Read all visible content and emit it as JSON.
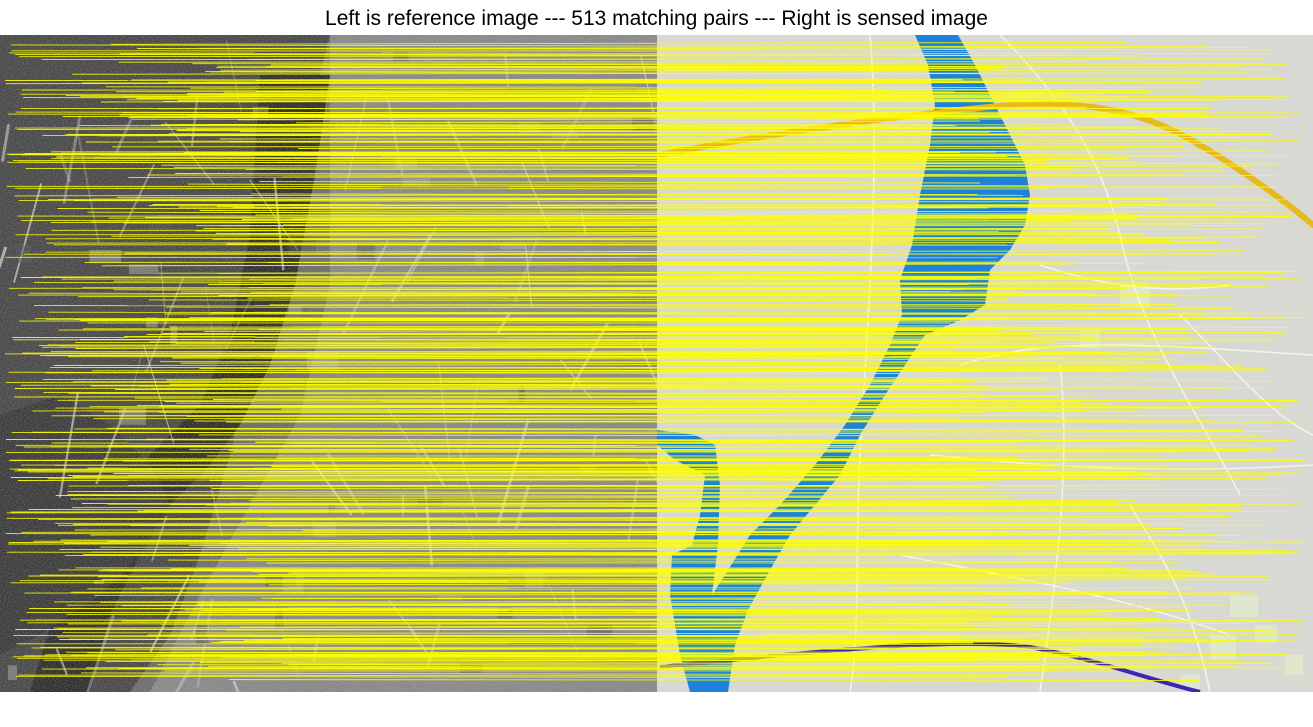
{
  "figure": {
    "title": "Left is reference image --- 513 matching pairs --- Right is sensed image",
    "match_count": 513,
    "match_line_color": "#ffff00",
    "left_panel": {
      "content": "grayscale SAR satellite image of river terrain"
    },
    "right_panel": {
      "content": "map rendering with blue river and light road network",
      "land_color": "#d8d9d2",
      "water_color": "#1e82dc",
      "road_color": "#f2f2f0",
      "highway_color": "#e8b820",
      "rail_color": "#3a28b4",
      "block_color": "#dfe8cf"
    }
  }
}
